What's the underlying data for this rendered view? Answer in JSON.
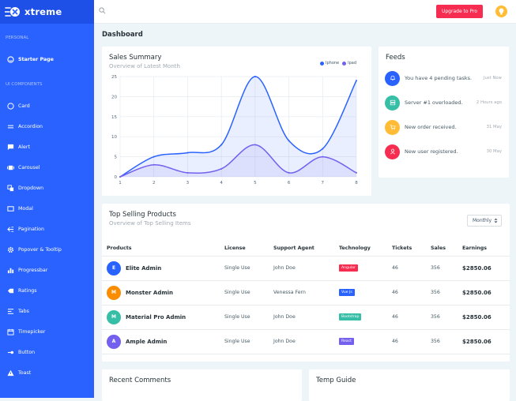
{
  "brand": {
    "name": "xtreme"
  },
  "topbar": {
    "upgrade_label": "Upgrade to Pro"
  },
  "sidebar": {
    "section_personal": "PERSONAL",
    "section_ui": "UI COMPONENTS",
    "starter": "Starter Page",
    "items": [
      "Card",
      "Accordion",
      "Alert",
      "Carousel",
      "Dropdown",
      "Modal",
      "Pagination",
      "Popover & Tooltip",
      "Progressbar",
      "Ratings",
      "Tabs",
      "Timepicker",
      "Button",
      "Toast"
    ]
  },
  "page": {
    "title": "Dashboard"
  },
  "sales": {
    "title": "Sales Summary",
    "subtitle": "Overview of Latest Month",
    "legend": [
      {
        "name": "Iphone",
        "color": "#2962ff"
      },
      {
        "name": "Ipad",
        "color": "#7460ee"
      }
    ]
  },
  "chart_data": {
    "type": "area",
    "x": [
      1,
      2,
      3,
      4,
      5,
      6,
      7,
      8
    ],
    "series": [
      {
        "name": "Iphone",
        "values": [
          0,
          5,
          6,
          8,
          25,
          9,
          7,
          24
        ]
      },
      {
        "name": "Ipad",
        "values": [
          0,
          3,
          1,
          2,
          8,
          1,
          5,
          1
        ]
      }
    ],
    "ylim": [
      0,
      25
    ],
    "yticks": [
      0,
      5,
      10,
      15,
      20,
      25
    ],
    "xticks": [
      1,
      2,
      3,
      4,
      5,
      6,
      7,
      8
    ]
  },
  "feeds": {
    "title": "Feeds",
    "items": [
      {
        "text": "You have 4 pending tasks.",
        "time": "Just Now",
        "color": "#2962ff",
        "icon": "bell-icon"
      },
      {
        "text": "Server #1 overloaded.",
        "time": "2 Hours ago",
        "color": "#36bea6",
        "icon": "server-icon"
      },
      {
        "text": "New order received.",
        "time": "31 May",
        "color": "#ffbc34",
        "icon": "cart-icon"
      },
      {
        "text": "New user registered.",
        "time": "30 May",
        "color": "#f62d51",
        "icon": "user-icon"
      }
    ]
  },
  "products": {
    "title": "Top Selling Products",
    "subtitle": "Overview of Top Selling Items",
    "filter": "Monthly",
    "headers": [
      "Products",
      "License",
      "Support Agent",
      "Technology",
      "Tickets",
      "Sales",
      "Earnings"
    ],
    "rows": [
      {
        "initial": "E",
        "avatar_color": "#2962ff",
        "name": "Elite Admin",
        "license": "Single Use",
        "agent": "John Doe",
        "tech": "Angular",
        "tech_color": "#f62d51",
        "tickets": "46",
        "sales": "356",
        "earnings": "$2850.06"
      },
      {
        "initial": "M",
        "avatar_color": "#fb8c00",
        "name": "Monster Admin",
        "license": "Single Use",
        "agent": "Venessa Fern",
        "tech": "Vue Js",
        "tech_color": "#2962ff",
        "tickets": "46",
        "sales": "356",
        "earnings": "$2850.06"
      },
      {
        "initial": "M",
        "avatar_color": "#36bea6",
        "name": "Material Pro Admin",
        "license": "Single Use",
        "agent": "John Doe",
        "tech": "Bootstrap",
        "tech_color": "#36bea6",
        "tickets": "46",
        "sales": "356",
        "earnings": "$2850.06"
      },
      {
        "initial": "A",
        "avatar_color": "#7460ee",
        "name": "Ample Admin",
        "license": "Single Use",
        "agent": "John Doe",
        "tech": "React",
        "tech_color": "#7460ee",
        "tickets": "46",
        "sales": "356",
        "earnings": "$2850.06"
      }
    ]
  },
  "recent": {
    "title": "Recent Comments"
  },
  "temp": {
    "title": "Temp Guide"
  }
}
